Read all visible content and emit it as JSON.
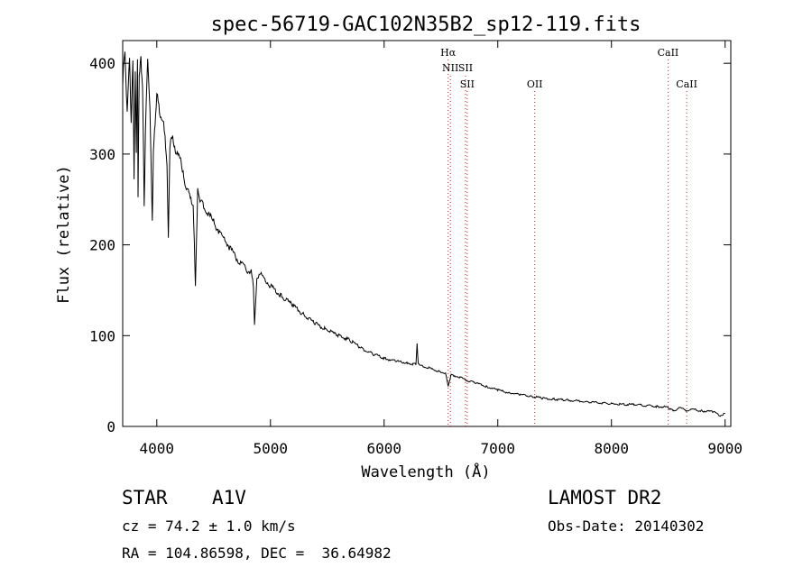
{
  "chart_data": {
    "type": "line",
    "title": "spec-56719-GAC102N35B2_sp12-119.fits",
    "xlabel": "Wavelength (Å)",
    "ylabel": "Flux (relative)",
    "xlim": [
      3700,
      9050
    ],
    "ylim": [
      0,
      425
    ],
    "xticks": [
      4000,
      5000,
      6000,
      7000,
      8000,
      9000
    ],
    "yticks": [
      0,
      100,
      200,
      300,
      400
    ],
    "grid": false,
    "series": [
      {
        "name": "spectrum",
        "x": [
          3700,
          3720,
          3740,
          3760,
          3775,
          3790,
          3800,
          3810,
          3820,
          3830,
          3835,
          3845,
          3860,
          3875,
          3889,
          3900,
          3920,
          3940,
          3960,
          3970,
          3985,
          4000,
          4030,
          4060,
          4090,
          4102,
          4115,
          4140,
          4180,
          4220,
          4260,
          4300,
          4320,
          4330,
          4340,
          4350,
          4360,
          4380,
          4400,
          4450,
          4500,
          4550,
          4600,
          4650,
          4700,
          4750,
          4800,
          4830,
          4850,
          4860,
          4870,
          4880,
          4900,
          4950,
          5000,
          5100,
          5200,
          5300,
          5400,
          5500,
          5600,
          5700,
          5800,
          5900,
          6000,
          6100,
          6200,
          6280,
          6290,
          6300,
          6350,
          6400,
          6500,
          6540,
          6563,
          6590,
          6650,
          6700,
          6800,
          6900,
          7000,
          7100,
          7200,
          7300,
          7400,
          7500,
          7600,
          7800,
          8000,
          8200,
          8400,
          8500,
          8542,
          8600,
          8662,
          8700,
          8800,
          8900,
          8950,
          9000
        ],
        "y": [
          375,
          420,
          340,
          410,
          330,
          405,
          270,
          395,
          300,
          410,
          250,
          390,
          400,
          380,
          245,
          320,
          410,
          345,
          228,
          300,
          335,
          365,
          345,
          330,
          292,
          205,
          312,
          318,
          300,
          290,
          260,
          255,
          240,
          205,
          152,
          210,
          258,
          250,
          245,
          235,
          225,
          215,
          205,
          195,
          185,
          178,
          172,
          170,
          155,
          110,
          140,
          160,
          170,
          162,
          155,
          143,
          133,
          122,
          113,
          106,
          100,
          95,
          86,
          80,
          75,
          72,
          70,
          68,
          92,
          68,
          66,
          64,
          60,
          58,
          45,
          57,
          55,
          52,
          48,
          44,
          40,
          37,
          35,
          33,
          31,
          30,
          29,
          27,
          25,
          24,
          22,
          21,
          17,
          21,
          17,
          19,
          17,
          16,
          12,
          14
        ]
      }
    ],
    "line_markers": [
      {
        "label": "Hα",
        "wavelength": 6563,
        "row": "top"
      },
      {
        "label": "NII",
        "wavelength": 6583,
        "row": "middle"
      },
      {
        "label": "SII",
        "wavelength": 6716,
        "row": "middle"
      },
      {
        "label": "SII",
        "wavelength": 6731,
        "row": "bottom"
      },
      {
        "label": "OII",
        "wavelength": 7325,
        "row": "bottom"
      },
      {
        "label": "CaII",
        "wavelength": 8498,
        "row": "top"
      },
      {
        "label": "CaII",
        "wavelength": 8662,
        "row": "bottom"
      }
    ],
    "marker_color": "#d01818"
  },
  "info": {
    "object_class": "STAR",
    "subclass": "A1V",
    "survey": "LAMOST DR2",
    "redshift": "cz = 74.2 ± 1.0 km/s",
    "obs_date": "Obs-Date: 20140302",
    "coordinates": "RA = 104.86598, DEC =  36.64982"
  }
}
